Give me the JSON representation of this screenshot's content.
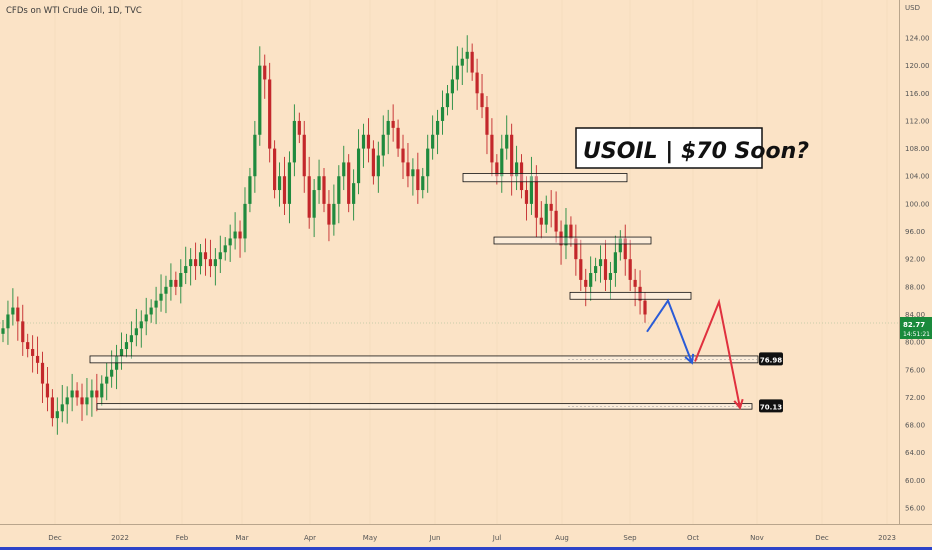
{
  "chart_data": {
    "type": "candlestick",
    "title": "CFDs on WTI Crude Oil, 1D, TVC",
    "currency": "USD",
    "headline": "USOIL | $70 Soon?",
    "ylim": [
      54,
      128
    ],
    "y_ticks": [
      "56.00",
      "60.00",
      "64.00",
      "68.00",
      "72.00",
      "76.00",
      "80.00",
      "84.00",
      "88.00",
      "92.00",
      "96.00",
      "100.00",
      "104.00",
      "108.00",
      "112.00",
      "116.00",
      "120.00",
      "124.00"
    ],
    "x_ticks": [
      "Dec",
      "2022",
      "Feb",
      "Mar",
      "Apr",
      "May",
      "Jun",
      "Jul",
      "Aug",
      "Sep",
      "Oct",
      "Nov",
      "Dec",
      "2023"
    ],
    "current_price": {
      "value": "82.77",
      "countdown": "14:51:21",
      "color": "#1a8a3c"
    },
    "colors": {
      "up": "#1f8a3e",
      "down": "#c3272b",
      "background": "#fbe3c6",
      "projection_blue": "#2a5bd7",
      "projection_red": "#e0303e"
    },
    "support_resistance_zones": [
      {
        "low": 103.2,
        "high": 104.4
      },
      {
        "low": 94.2,
        "high": 95.2
      },
      {
        "low": 86.2,
        "high": 87.2
      },
      {
        "low": 77.0,
        "high": 78.0,
        "label": "76.98"
      },
      {
        "low": 70.3,
        "high": 71.1,
        "label": "70.13"
      }
    ],
    "projection_paths": [
      {
        "color": "blue",
        "points": [
          [
            0,
            81.5
          ],
          [
            0.35,
            86
          ],
          [
            0.75,
            77
          ]
        ]
      },
      {
        "color": "red",
        "points": [
          [
            0.8,
            77.2
          ],
          [
            1.2,
            85.8
          ],
          [
            1.55,
            70.5
          ]
        ]
      }
    ],
    "candle_closes": [
      82,
      84,
      85,
      83,
      80,
      79,
      78,
      77,
      74,
      72,
      69,
      70,
      71,
      72,
      73,
      72,
      71,
      72,
      73,
      72,
      74,
      75,
      76,
      78,
      79,
      80,
      81,
      82,
      83,
      84,
      85,
      86,
      87,
      88,
      89,
      88,
      90,
      91,
      92,
      91,
      93,
      92,
      91,
      92,
      93,
      94,
      95,
      96,
      95,
      100,
      104,
      110,
      120,
      118,
      108,
      102,
      104,
      100,
      106,
      112,
      110,
      104,
      98,
      102,
      104,
      100,
      97,
      100,
      104,
      106,
      100,
      103,
      108,
      110,
      108,
      104,
      107,
      110,
      112,
      111,
      108,
      106,
      104,
      105,
      102,
      104,
      108,
      110,
      112,
      114,
      116,
      118,
      120,
      121,
      122,
      119,
      116,
      114,
      110,
      106,
      104,
      108,
      110,
      104,
      106,
      102,
      100,
      104,
      98,
      97,
      100,
      99,
      96,
      94,
      97,
      95,
      92,
      89,
      88,
      90,
      91,
      92,
      89,
      90,
      93,
      95,
      92,
      89,
      88,
      86,
      84
    ]
  }
}
